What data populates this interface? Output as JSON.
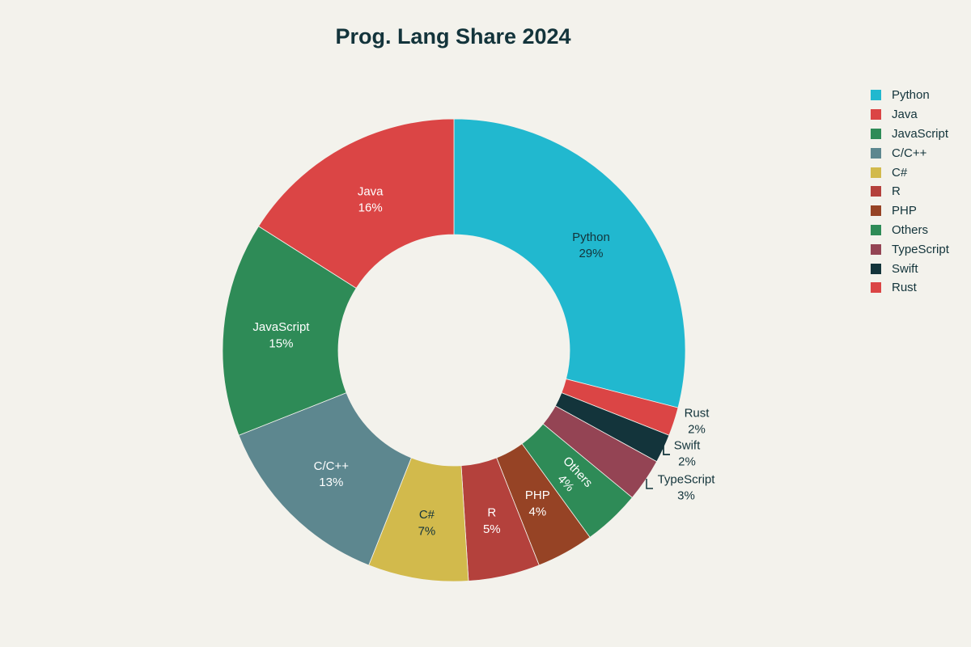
{
  "chart_data": {
    "type": "pie",
    "title": "Prog. Lang Share 2024",
    "donut": true,
    "legend_position": "right",
    "slices": [
      {
        "label": "Python",
        "value": 29,
        "color": "#21b8cf",
        "text_color": "#13343b"
      },
      {
        "label": "Rust",
        "value": 2,
        "color": "#db4545",
        "text_color": "#13343b"
      },
      {
        "label": "Swift",
        "value": 2,
        "color": "#13343b",
        "text_color": "#13343b"
      },
      {
        "label": "TypeScript",
        "value": 3,
        "color": "#944454",
        "text_color": "#13343b"
      },
      {
        "label": "Others",
        "value": 4,
        "color": "#2e8b57",
        "text_color": "#ffffff"
      },
      {
        "label": "PHP",
        "value": 4,
        "color": "#964325",
        "text_color": "#ffffff"
      },
      {
        "label": "R",
        "value": 5,
        "color": "#b4413c",
        "text_color": "#ffffff"
      },
      {
        "label": "C#",
        "value": 7,
        "color": "#d2ba4c",
        "text_color": "#13343b"
      },
      {
        "label": "C/C++",
        "value": 13,
        "color": "#5d878f",
        "text_color": "#ffffff"
      },
      {
        "label": "JavaScript",
        "value": 15,
        "color": "#2e8b57",
        "text_color": "#ffffff"
      },
      {
        "label": "Java",
        "value": 16,
        "color": "#db4545",
        "text_color": "#ffffff"
      }
    ],
    "slice_label_values": [
      "29%",
      "2%",
      "2%",
      "3%",
      "4%",
      "4%",
      "5%",
      "7%",
      "13%",
      "15%",
      "16%"
    ],
    "outside_labels": [
      "Rust",
      "Swift",
      "TypeScript"
    ],
    "legend_order": [
      "Python",
      "Java",
      "JavaScript",
      "C/C++",
      "C#",
      "R",
      "PHP",
      "Others",
      "TypeScript",
      "Swift",
      "Rust"
    ]
  }
}
